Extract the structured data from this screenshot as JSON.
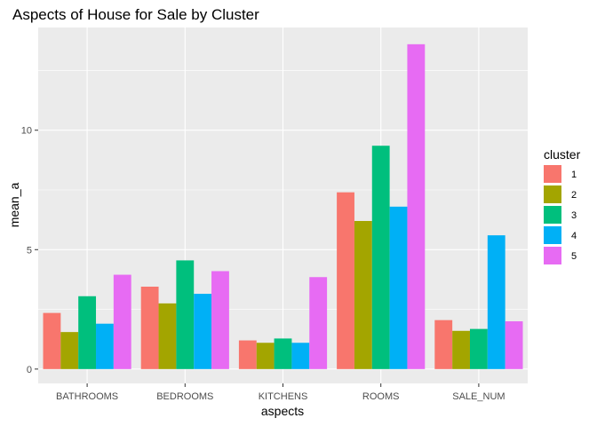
{
  "chart_data": {
    "type": "bar",
    "title": "Aspects of House for Sale by Cluster",
    "xlabel": "aspects",
    "ylabel": "mean_a",
    "categories": [
      "BATHROOMS",
      "BEDROOMS",
      "KITCHENS",
      "ROOMS",
      "SALE_NUM"
    ],
    "yticks": [
      0,
      5,
      10
    ],
    "ylim": [
      -0.6,
      14.3
    ],
    "grid": true,
    "legend": {
      "title": "cluster",
      "placement": "right"
    },
    "series": [
      {
        "name": "1",
        "color": "#F8766D",
        "values": [
          2.35,
          3.45,
          1.2,
          7.4,
          2.05
        ]
      },
      {
        "name": "2",
        "color": "#A3A500",
        "values": [
          1.55,
          2.75,
          1.1,
          6.2,
          1.6
        ]
      },
      {
        "name": "3",
        "color": "#00BF7D",
        "values": [
          3.05,
          4.55,
          1.28,
          9.35,
          1.68
        ]
      },
      {
        "name": "4",
        "color": "#00B0F6",
        "values": [
          1.9,
          3.15,
          1.1,
          6.8,
          5.6
        ]
      },
      {
        "name": "5",
        "color": "#E76BF3",
        "values": [
          3.95,
          4.1,
          3.85,
          13.6,
          2.0
        ]
      }
    ]
  }
}
